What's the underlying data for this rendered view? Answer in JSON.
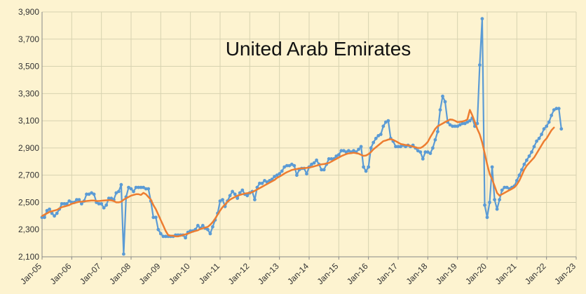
{
  "chart_data": {
    "type": "line",
    "title": "United Arab Emirates",
    "xlabel": "",
    "ylabel": "",
    "ylim": [
      2100,
      3900
    ],
    "yticks": [
      2100,
      2300,
      2500,
      2700,
      2900,
      3100,
      3300,
      3500,
      3700,
      3900
    ],
    "ytick_labels": [
      "2,100",
      "2,300",
      "2,500",
      "2,700",
      "2,900",
      "3,100",
      "3,300",
      "3,500",
      "3,700",
      "3,900"
    ],
    "xticks": [
      "Jan-05",
      "Jan-06",
      "Jan-07",
      "Jan-08",
      "Jan-09",
      "Jan-10",
      "Jan-11",
      "Jan-12",
      "Jan-13",
      "Jan-14",
      "Jan-15",
      "Jan-16",
      "Jan-17",
      "Jan-18",
      "Jan-19",
      "Jan-20",
      "Jan-21",
      "Jan-22",
      "Jan-23"
    ],
    "grid": true,
    "legend": "none",
    "colors": {
      "monthly": "#5b9bd5",
      "average": "#ed7d31",
      "grid": "#d7d2b0",
      "background": "#fdf3d0"
    },
    "series": [
      {
        "x_start": "Jan-05",
        "frequency": "monthly",
        "style": "line-markers",
        "values": [
          2390,
          2390,
          2440,
          2450,
          2420,
          2400,
          2420,
          2450,
          2490,
          2490,
          2490,
          2510,
          2500,
          2500,
          2520,
          2520,
          2490,
          2510,
          2560,
          2560,
          2570,
          2560,
          2500,
          2490,
          2490,
          2460,
          2480,
          2530,
          2530,
          2520,
          2570,
          2580,
          2630,
          2120,
          2540,
          2610,
          2600,
          2580,
          2610,
          2610,
          2610,
          2610,
          2600,
          2600,
          2510,
          2390,
          2390,
          2300,
          2270,
          2250,
          2250,
          2250,
          2250,
          2250,
          2260,
          2260,
          2260,
          2260,
          2240,
          2280,
          2290,
          2290,
          2300,
          2330,
          2310,
          2330,
          2310,
          2300,
          2270,
          2320,
          2370,
          2420,
          2510,
          2520,
          2470,
          2510,
          2550,
          2580,
          2560,
          2530,
          2570,
          2590,
          2560,
          2550,
          2570,
          2580,
          2520,
          2610,
          2640,
          2640,
          2660,
          2650,
          2660,
          2670,
          2690,
          2700,
          2710,
          2730,
          2760,
          2770,
          2770,
          2780,
          2770,
          2700,
          2740,
          2750,
          2750,
          2710,
          2760,
          2780,
          2790,
          2810,
          2780,
          2740,
          2740,
          2780,
          2820,
          2820,
          2820,
          2840,
          2850,
          2880,
          2880,
          2870,
          2880,
          2870,
          2880,
          2870,
          2890,
          2910,
          2760,
          2730,
          2760,
          2900,
          2940,
          2970,
          2990,
          3000,
          3060,
          3090,
          3100,
          2970,
          2950,
          2910,
          2910,
          2910,
          2920,
          2910,
          2920,
          2910,
          2920,
          2900,
          2880,
          2870,
          2820,
          2870,
          2870,
          2860,
          2900,
          2960,
          3020,
          3180,
          3280,
          3240,
          3090,
          3070,
          3060,
          3060,
          3060,
          3070,
          3080,
          3080,
          3090,
          3100,
          3120,
          3060,
          3080,
          3510,
          3850,
          2480,
          2390,
          2500,
          2760,
          2520,
          2450,
          2520,
          2590,
          2610,
          2610,
          2600,
          2610,
          2620,
          2660,
          2700,
          2740,
          2780,
          2810,
          2840,
          2870,
          2910,
          2950,
          2970,
          3000,
          3040,
          3060,
          3090,
          3140,
          3180,
          3190,
          3190,
          3040
        ]
      },
      {
        "x_start": "Jan-05",
        "frequency": "monthly",
        "style": "line",
        "values": [
          2400,
          2410,
          2420,
          2430,
          2435,
          2440,
          2445,
          2455,
          2465,
          2470,
          2475,
          2480,
          2490,
          2495,
          2500,
          2505,
          2505,
          2508,
          2510,
          2512,
          2514,
          2514,
          2510,
          2510,
          2512,
          2514,
          2515,
          2516,
          2515,
          2510,
          2500,
          2500,
          2505,
          2520,
          2530,
          2540,
          2550,
          2555,
          2560,
          2560,
          2555,
          2570,
          2560,
          2540,
          2520,
          2480,
          2450,
          2410,
          2370,
          2330,
          2290,
          2260,
          2255,
          2255,
          2250,
          2250,
          2255,
          2260,
          2265,
          2270,
          2278,
          2285,
          2290,
          2295,
          2305,
          2310,
          2315,
          2320,
          2335,
          2355,
          2380,
          2410,
          2440,
          2465,
          2485,
          2505,
          2520,
          2530,
          2540,
          2550,
          2555,
          2560,
          2565,
          2568,
          2570,
          2575,
          2585,
          2595,
          2605,
          2615,
          2625,
          2635,
          2645,
          2655,
          2665,
          2680,
          2690,
          2700,
          2712,
          2722,
          2730,
          2738,
          2742,
          2745,
          2750,
          2750,
          2752,
          2754,
          2756,
          2760,
          2765,
          2770,
          2775,
          2780,
          2782,
          2786,
          2790,
          2800,
          2810,
          2820,
          2830,
          2840,
          2848,
          2855,
          2860,
          2862,
          2865,
          2862,
          2858,
          2850,
          2842,
          2845,
          2855,
          2870,
          2890,
          2905,
          2920,
          2935,
          2950,
          2955,
          2962,
          2965,
          2960,
          2950,
          2940,
          2930,
          2925,
          2922,
          2920,
          2915,
          2910,
          2905,
          2900,
          2900,
          2910,
          2925,
          2945,
          2980,
          3010,
          3040,
          3060,
          3070,
          3080,
          3090,
          3100,
          3110,
          3108,
          3100,
          3090,
          3092,
          3095,
          3100,
          3110,
          3180,
          3140,
          3090,
          3040,
          3000,
          2940,
          2860,
          2780,
          2710,
          2670,
          2620,
          2570,
          2550,
          2560,
          2570,
          2580,
          2590,
          2600,
          2610,
          2630,
          2660,
          2700,
          2740,
          2770,
          2790,
          2810,
          2830,
          2860,
          2890,
          2920,
          2950,
          2970,
          3000,
          3030,
          3050
        ]
      }
    ]
  }
}
